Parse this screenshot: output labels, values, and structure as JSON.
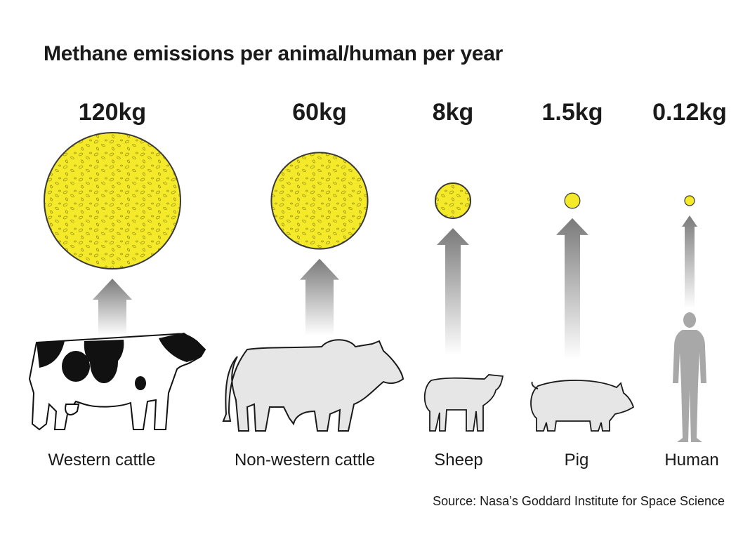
{
  "title": "Methane emissions per animal/human per year",
  "source": "Source: Nasa’s Goddard Institute for Space Science",
  "colors": {
    "bubble": "#f5ea2a",
    "bubble_outline": "#3a3a3a",
    "arrow": "#808080",
    "animal": "#e6e6e6",
    "cow_patches": "#111111",
    "human": "#a8a8a8"
  },
  "chart_data": {
    "type": "bubble",
    "unit": "kg",
    "categories": [
      "Western cattle",
      "Non-western cattle",
      "Sheep",
      "Pig",
      "Human"
    ],
    "values": [
      120,
      60,
      8,
      1.5,
      0.12
    ],
    "value_labels": [
      "120kg",
      "60kg",
      "8kg",
      "1.5kg",
      "0.12kg"
    ],
    "icons": [
      "cow-icon",
      "zebu-icon",
      "sheep-icon",
      "pig-icon",
      "human-icon"
    ]
  }
}
